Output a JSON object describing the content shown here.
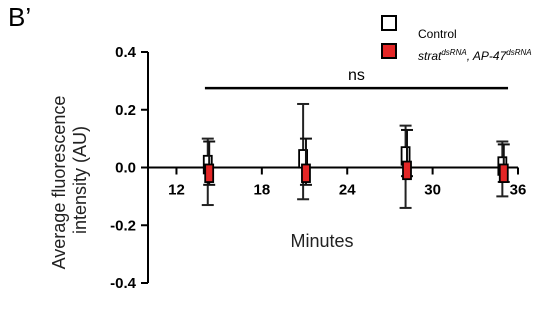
{
  "panel_label": "B’",
  "chart_data": {
    "type": "scatter",
    "title": "",
    "xlabel": "Minutes",
    "ylabel_lines": [
      "Average fluorescence",
      "intensity (AU)"
    ],
    "xlim": [
      10,
      36
    ],
    "ylim": [
      -0.4,
      0.4
    ],
    "x_ticks": [
      12,
      18,
      24,
      30,
      36
    ],
    "y_ticks": [
      -0.4,
      -0.2,
      0.0,
      0.2,
      0.4
    ],
    "y_tick_labels": [
      "-0.4",
      "-0.2",
      "0.0",
      "0.2",
      "0.4"
    ],
    "grid": false,
    "legend_position": "top-right",
    "annotation": {
      "text": "ns",
      "x_start": 14,
      "x_end": 35.3,
      "y": 0.275
    },
    "series": [
      {
        "name": "Control",
        "color": "#ffffff",
        "edge_color": "#000000",
        "points": [
          {
            "x": 14.2,
            "y": 0.01,
            "err_low": -0.13,
            "err_high": 0.1
          },
          {
            "x": 20.9,
            "y": 0.03,
            "err_low": -0.11,
            "err_high": 0.22
          },
          {
            "x": 28.1,
            "y": 0.04,
            "err_low": -0.14,
            "err_high": 0.145
          },
          {
            "x": 34.9,
            "y": 0.005,
            "err_low": -0.1,
            "err_high": 0.09
          }
        ]
      },
      {
        "name_main": "strat",
        "name_sup1": "dsRNA",
        "name_mid": ", AP-47",
        "name_sup2": "dsRNA",
        "color": "#e32626",
        "edge_color": "#000000",
        "points": [
          {
            "x": 14.3,
            "y": -0.02,
            "err_low": -0.06,
            "err_high": 0.09
          },
          {
            "x": 21.1,
            "y": -0.02,
            "err_low": -0.06,
            "err_high": 0.1
          },
          {
            "x": 28.2,
            "y": -0.01,
            "err_low": -0.03,
            "err_high": 0.13
          },
          {
            "x": 35.0,
            "y": -0.02,
            "err_low": -0.05,
            "err_high": 0.08
          }
        ]
      }
    ]
  }
}
